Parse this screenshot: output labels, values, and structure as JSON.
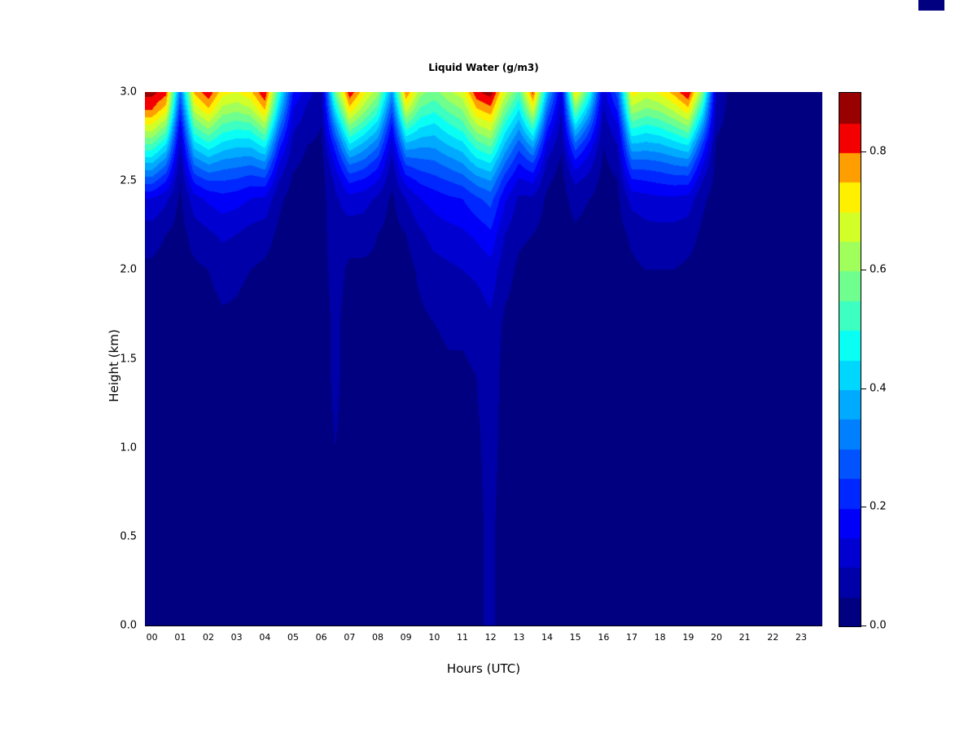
{
  "figure": {
    "background": "#FFFFFF",
    "corner_artifact_color": "#000080"
  },
  "chart_data": {
    "type": "heatmap",
    "title": "Liquid Water (g/m3)",
    "xlabel": "Hours (UTC)",
    "ylabel": "Height (km)",
    "x_range": [
      0,
      24
    ],
    "y_range": [
      0.0,
      3.0
    ],
    "value_range": [
      0,
      0.9
    ],
    "level_step": 0.05,
    "grid": "off",
    "legend_position": "right-colorbar",
    "x_tick_labels": [
      "00",
      "01",
      "02",
      "03",
      "04",
      "05",
      "06",
      "07",
      "08",
      "09",
      "10",
      "11",
      "12",
      "13",
      "14",
      "15",
      "16",
      "17",
      "18",
      "19",
      "20",
      "21",
      "22",
      "23"
    ],
    "y_tick_labels": [
      "0.0",
      "0.5",
      "1.0",
      "1.5",
      "2.0",
      "2.5",
      "3.0"
    ],
    "y_tick_values": [
      0.0,
      0.5,
      1.0,
      1.5,
      2.0,
      2.5,
      3.0
    ],
    "colorbar": {
      "tick_labels": [
        "0.0",
        "0.2",
        "0.4",
        "0.6",
        "0.8"
      ],
      "tick_values": [
        0.0,
        0.2,
        0.4,
        0.6,
        0.8
      ]
    },
    "colors": [
      "#000080",
      "#0000A8",
      "#0000D0",
      "#0000F8",
      "#0027FF",
      "#0053FF",
      "#007FFF",
      "#00ABFF",
      "#00D7FF",
      "#0AFFF4",
      "#3CFFC1",
      "#6EFF8E",
      "#A0FF5B",
      "#D2FF28",
      "#FFF000",
      "#FF9E00",
      "#F50000",
      "#990000"
    ],
    "x_centers_hours": [
      0.0,
      0.5,
      1.0,
      1.5,
      2.0,
      2.5,
      3.0,
      3.5,
      4.0,
      4.5,
      5.0,
      5.5,
      6.0,
      6.5,
      7.0,
      7.5,
      8.0,
      8.5,
      9.0,
      9.5,
      10.0,
      10.5,
      11.0,
      11.5,
      12.0,
      12.5,
      13.0,
      13.5,
      14.0,
      14.5,
      15.0,
      15.5,
      16.0,
      16.5,
      17.0,
      17.5,
      18.0,
      18.5,
      19.0,
      19.5,
      20.0,
      20.5,
      21.0,
      21.5,
      22.0,
      22.5,
      23.0,
      23.5
    ],
    "y_centers_km": [
      3.0,
      2.9,
      2.8,
      2.7,
      2.6,
      2.5,
      2.4,
      2.2,
      2.0,
      1.7,
      1.4,
      1.0,
      0.6,
      0.2
    ],
    "columns": [
      [
        0.87,
        0.8,
        0.68,
        0.54,
        0.4,
        0.27,
        0.15,
        0.07,
        0.04,
        0.03,
        0.03,
        0.03,
        0.03,
        0.03
      ],
      [
        0.82,
        0.72,
        0.58,
        0.44,
        0.31,
        0.2,
        0.11,
        0.05,
        0.03,
        0.03,
        0.03,
        0.03,
        0.03,
        0.03
      ],
      [
        0.3,
        0.22,
        0.15,
        0.1,
        0.07,
        0.05,
        0.04,
        0.03,
        0.03,
        0.03,
        0.03,
        0.03,
        0.03,
        0.03
      ],
      [
        0.76,
        0.66,
        0.54,
        0.42,
        0.31,
        0.21,
        0.13,
        0.07,
        0.04,
        0.03,
        0.03,
        0.03,
        0.03,
        0.03
      ],
      [
        0.84,
        0.74,
        0.61,
        0.48,
        0.36,
        0.25,
        0.16,
        0.09,
        0.05,
        0.03,
        0.03,
        0.03,
        0.03,
        0.03
      ],
      [
        0.72,
        0.63,
        0.53,
        0.43,
        0.33,
        0.25,
        0.18,
        0.11,
        0.07,
        0.04,
        0.03,
        0.03,
        0.03,
        0.03
      ],
      [
        0.7,
        0.61,
        0.51,
        0.41,
        0.32,
        0.24,
        0.17,
        0.1,
        0.06,
        0.04,
        0.03,
        0.03,
        0.03,
        0.03
      ],
      [
        0.74,
        0.64,
        0.52,
        0.41,
        0.31,
        0.22,
        0.15,
        0.08,
        0.05,
        0.03,
        0.03,
        0.03,
        0.03,
        0.03
      ],
      [
        0.85,
        0.75,
        0.61,
        0.47,
        0.34,
        0.23,
        0.14,
        0.07,
        0.04,
        0.03,
        0.03,
        0.03,
        0.03,
        0.03
      ],
      [
        0.5,
        0.41,
        0.31,
        0.22,
        0.15,
        0.1,
        0.06,
        0.04,
        0.03,
        0.03,
        0.03,
        0.03,
        0.03,
        0.03
      ],
      [
        0.2,
        0.15,
        0.11,
        0.08,
        0.06,
        0.04,
        0.03,
        0.03,
        0.03,
        0.03,
        0.03,
        0.03,
        0.03,
        0.03
      ],
      [
        0.12,
        0.09,
        0.07,
        0.05,
        0.04,
        0.03,
        0.03,
        0.03,
        0.03,
        0.03,
        0.03,
        0.03,
        0.03,
        0.03
      ],
      [
        0.07,
        0.06,
        0.05,
        0.04,
        0.03,
        0.03,
        0.03,
        0.03,
        0.03,
        0.03,
        0.03,
        0.03,
        0.03,
        0.03
      ],
      [
        0.58,
        0.45,
        0.33,
        0.23,
        0.16,
        0.11,
        0.09,
        0.08,
        0.07,
        0.06,
        0.06,
        0.05,
        0.05,
        0.05
      ],
      [
        0.84,
        0.73,
        0.58,
        0.44,
        0.31,
        0.21,
        0.13,
        0.07,
        0.04,
        0.03,
        0.03,
        0.03,
        0.03,
        0.03
      ],
      [
        0.72,
        0.62,
        0.5,
        0.38,
        0.28,
        0.19,
        0.12,
        0.07,
        0.04,
        0.03,
        0.03,
        0.03,
        0.03,
        0.03
      ],
      [
        0.62,
        0.52,
        0.41,
        0.31,
        0.22,
        0.15,
        0.09,
        0.05,
        0.04,
        0.03,
        0.03,
        0.03,
        0.03,
        0.03
      ],
      [
        0.35,
        0.26,
        0.18,
        0.12,
        0.08,
        0.06,
        0.04,
        0.03,
        0.03,
        0.03,
        0.03,
        0.03,
        0.03,
        0.03
      ],
      [
        0.8,
        0.67,
        0.52,
        0.38,
        0.26,
        0.17,
        0.1,
        0.05,
        0.03,
        0.03,
        0.03,
        0.03,
        0.03,
        0.03
      ],
      [
        0.62,
        0.54,
        0.45,
        0.36,
        0.28,
        0.21,
        0.15,
        0.09,
        0.06,
        0.04,
        0.03,
        0.03,
        0.03,
        0.03
      ],
      [
        0.58,
        0.51,
        0.43,
        0.36,
        0.29,
        0.23,
        0.17,
        0.12,
        0.08,
        0.05,
        0.03,
        0.03,
        0.03,
        0.03
      ],
      [
        0.64,
        0.56,
        0.48,
        0.4,
        0.32,
        0.25,
        0.19,
        0.13,
        0.09,
        0.06,
        0.04,
        0.03,
        0.03,
        0.03
      ],
      [
        0.68,
        0.6,
        0.52,
        0.43,
        0.35,
        0.27,
        0.2,
        0.14,
        0.1,
        0.06,
        0.04,
        0.03,
        0.03,
        0.03
      ],
      [
        0.84,
        0.74,
        0.63,
        0.52,
        0.42,
        0.32,
        0.24,
        0.16,
        0.11,
        0.07,
        0.05,
        0.04,
        0.04,
        0.04
      ],
      [
        0.88,
        0.78,
        0.67,
        0.56,
        0.45,
        0.35,
        0.27,
        0.19,
        0.13,
        0.09,
        0.08,
        0.07,
        0.06,
        0.06
      ],
      [
        0.68,
        0.58,
        0.48,
        0.39,
        0.3,
        0.22,
        0.16,
        0.1,
        0.07,
        0.04,
        0.03,
        0.03,
        0.03,
        0.03
      ],
      [
        0.54,
        0.45,
        0.36,
        0.27,
        0.2,
        0.14,
        0.09,
        0.06,
        0.04,
        0.03,
        0.03,
        0.03,
        0.03,
        0.03
      ],
      [
        0.82,
        0.68,
        0.52,
        0.37,
        0.25,
        0.16,
        0.09,
        0.05,
        0.03,
        0.03,
        0.03,
        0.03,
        0.03,
        0.03
      ],
      [
        0.4,
        0.3,
        0.21,
        0.14,
        0.09,
        0.06,
        0.04,
        0.03,
        0.03,
        0.03,
        0.03,
        0.03,
        0.03,
        0.03
      ],
      [
        0.14,
        0.1,
        0.08,
        0.06,
        0.04,
        0.03,
        0.03,
        0.03,
        0.03,
        0.03,
        0.03,
        0.03,
        0.03,
        0.03
      ],
      [
        0.74,
        0.58,
        0.42,
        0.28,
        0.18,
        0.11,
        0.07,
        0.04,
        0.03,
        0.03,
        0.03,
        0.03,
        0.03,
        0.03
      ],
      [
        0.5,
        0.38,
        0.27,
        0.18,
        0.12,
        0.08,
        0.05,
        0.03,
        0.03,
        0.03,
        0.03,
        0.03,
        0.03,
        0.03
      ],
      [
        0.12,
        0.09,
        0.07,
        0.05,
        0.04,
        0.03,
        0.03,
        0.03,
        0.03,
        0.03,
        0.03,
        0.03,
        0.03,
        0.03
      ],
      [
        0.28,
        0.21,
        0.14,
        0.1,
        0.07,
        0.05,
        0.04,
        0.03,
        0.03,
        0.03,
        0.03,
        0.03,
        0.03,
        0.03
      ],
      [
        0.73,
        0.63,
        0.51,
        0.39,
        0.28,
        0.19,
        0.12,
        0.06,
        0.04,
        0.03,
        0.03,
        0.03,
        0.03,
        0.03
      ],
      [
        0.68,
        0.59,
        0.48,
        0.38,
        0.28,
        0.2,
        0.13,
        0.08,
        0.05,
        0.03,
        0.03,
        0.03,
        0.03,
        0.03
      ],
      [
        0.71,
        0.61,
        0.5,
        0.39,
        0.29,
        0.21,
        0.14,
        0.08,
        0.05,
        0.03,
        0.03,
        0.03,
        0.03,
        0.03
      ],
      [
        0.77,
        0.66,
        0.54,
        0.42,
        0.31,
        0.22,
        0.14,
        0.08,
        0.05,
        0.03,
        0.03,
        0.03,
        0.03,
        0.03
      ],
      [
        0.85,
        0.73,
        0.59,
        0.45,
        0.32,
        0.22,
        0.13,
        0.07,
        0.04,
        0.03,
        0.03,
        0.03,
        0.03,
        0.03
      ],
      [
        0.6,
        0.47,
        0.35,
        0.24,
        0.16,
        0.1,
        0.06,
        0.04,
        0.03,
        0.03,
        0.03,
        0.03,
        0.03,
        0.03
      ],
      [
        0.1,
        0.08,
        0.06,
        0.04,
        0.03,
        0.03,
        0.03,
        0.03,
        0.03,
        0.03,
        0.03,
        0.03,
        0.03,
        0.03
      ],
      [
        0.03,
        0.03,
        0.03,
        0.03,
        0.03,
        0.03,
        0.03,
        0.03,
        0.03,
        0.03,
        0.03,
        0.03,
        0.03,
        0.03
      ],
      [
        0.03,
        0.03,
        0.03,
        0.03,
        0.03,
        0.03,
        0.03,
        0.03,
        0.03,
        0.03,
        0.03,
        0.03,
        0.03,
        0.03
      ],
      [
        0.03,
        0.03,
        0.03,
        0.03,
        0.03,
        0.03,
        0.03,
        0.03,
        0.03,
        0.03,
        0.03,
        0.03,
        0.03,
        0.03
      ],
      [
        0.03,
        0.03,
        0.03,
        0.03,
        0.03,
        0.03,
        0.03,
        0.03,
        0.03,
        0.03,
        0.03,
        0.03,
        0.03,
        0.03
      ],
      [
        0.03,
        0.03,
        0.03,
        0.03,
        0.03,
        0.03,
        0.03,
        0.03,
        0.03,
        0.03,
        0.03,
        0.03,
        0.03,
        0.03
      ],
      [
        0.03,
        0.03,
        0.03,
        0.03,
        0.03,
        0.03,
        0.03,
        0.03,
        0.03,
        0.03,
        0.03,
        0.03,
        0.03,
        0.03
      ],
      [
        0.03,
        0.03,
        0.03,
        0.03,
        0.03,
        0.03,
        0.03,
        0.03,
        0.03,
        0.03,
        0.03,
        0.03,
        0.03,
        0.03
      ]
    ]
  }
}
